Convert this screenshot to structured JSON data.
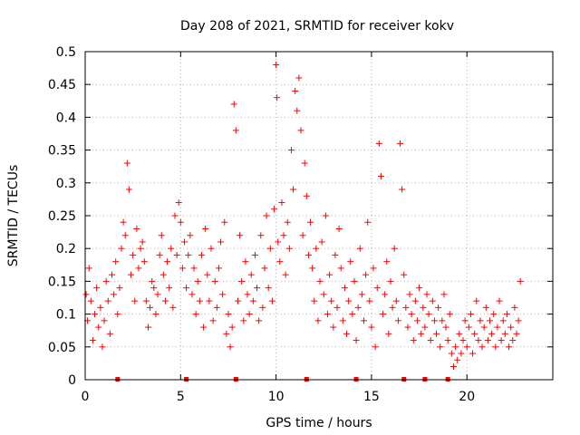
{
  "chart_data": {
    "type": "scatter",
    "title": "Day 208 of 2021, SRMTID for receiver kokv",
    "xlabel": "GPS time / hours",
    "ylabel": "SRMTID / TECUs",
    "xlim": [
      0,
      24.5
    ],
    "ylim": [
      0,
      0.5
    ],
    "x_ticks": [
      0,
      5,
      10,
      15,
      20
    ],
    "x_tick_labels": [
      "0",
      "5",
      "10",
      "15",
      "20"
    ],
    "y_ticks": [
      0,
      0.05,
      0.1,
      0.15,
      0.2,
      0.25,
      0.3,
      0.35,
      0.4,
      0.45,
      0.5
    ],
    "y_tick_labels": [
      "0",
      "0.05",
      "0.1",
      "0.15",
      "0.2",
      "0.25",
      "0.3",
      "0.35",
      "0.4",
      "0.45",
      "0.5"
    ],
    "grid": true,
    "marker": "plus",
    "color": "#ff0000",
    "series": [
      {
        "name": "SRMTID",
        "x": [
          0.05,
          0.12,
          0.2,
          0.3,
          0.4,
          0.5,
          0.6,
          0.7,
          0.8,
          0.9,
          1.0,
          1.1,
          1.2,
          1.3,
          1.4,
          1.5,
          1.6,
          1.7,
          1.8,
          1.9,
          2.0,
          2.1,
          2.2,
          2.3,
          2.4,
          2.5,
          2.6,
          2.7,
          2.8,
          2.9,
          3.0,
          3.1,
          3.2,
          3.3,
          3.4,
          3.5,
          3.6,
          3.7,
          3.8,
          3.9,
          4.0,
          4.1,
          4.2,
          4.3,
          4.4,
          4.5,
          4.6,
          4.7,
          4.8,
          4.9,
          5.0,
          5.1,
          5.2,
          5.3,
          5.4,
          5.5,
          5.6,
          5.7,
          5.8,
          5.9,
          6.0,
          6.1,
          6.2,
          6.3,
          6.4,
          6.5,
          6.6,
          6.7,
          6.8,
          6.9,
          7.0,
          7.1,
          7.2,
          7.3,
          7.4,
          7.5,
          7.6,
          7.7,
          7.8,
          7.9,
          8.0,
          8.1,
          8.2,
          8.3,
          8.4,
          8.5,
          8.6,
          8.7,
          8.8,
          8.9,
          9.0,
          9.1,
          9.2,
          9.3,
          9.4,
          9.5,
          9.6,
          9.7,
          9.8,
          9.9,
          10.0,
          10.05,
          10.1,
          10.2,
          10.3,
          10.4,
          10.5,
          10.6,
          10.7,
          10.8,
          10.9,
          11.0,
          11.1,
          11.2,
          11.3,
          11.4,
          11.5,
          11.6,
          11.7,
          11.8,
          11.9,
          12.0,
          12.1,
          12.2,
          12.3,
          12.4,
          12.5,
          12.6,
          12.7,
          12.8,
          12.9,
          13.0,
          13.1,
          13.2,
          13.3,
          13.4,
          13.5,
          13.6,
          13.7,
          13.8,
          13.9,
          14.0,
          14.1,
          14.2,
          14.3,
          14.4,
          14.5,
          14.6,
          14.7,
          14.8,
          14.9,
          15.0,
          15.1,
          15.2,
          15.3,
          15.4,
          15.5,
          15.6,
          15.7,
          15.8,
          15.9,
          16.0,
          16.1,
          16.2,
          16.3,
          16.4,
          16.5,
          16.6,
          16.7,
          16.8,
          16.9,
          17.0,
          17.1,
          17.2,
          17.3,
          17.4,
          17.5,
          17.6,
          17.7,
          17.8,
          17.9,
          18.0,
          18.1,
          18.2,
          18.3,
          18.4,
          18.5,
          18.6,
          18.7,
          18.8,
          18.9,
          19.0,
          19.1,
          19.2,
          19.3,
          19.4,
          19.5,
          19.6,
          19.7,
          19.8,
          19.9,
          20.0,
          20.1,
          20.2,
          20.3,
          20.4,
          20.5,
          20.6,
          20.7,
          20.8,
          20.9,
          21.0,
          21.1,
          21.2,
          21.3,
          21.4,
          21.5,
          21.6,
          21.7,
          21.8,
          21.9,
          22.0,
          22.1,
          22.2,
          22.3,
          22.4,
          22.5,
          22.6,
          22.7,
          22.8
        ],
        "y": [
          0.13,
          0.09,
          0.17,
          0.12,
          0.06,
          0.1,
          0.14,
          0.08,
          0.11,
          0.05,
          0.09,
          0.15,
          0.12,
          0.07,
          0.16,
          0.13,
          0.18,
          0.1,
          0.14,
          0.2,
          0.24,
          0.22,
          0.33,
          0.29,
          0.16,
          0.19,
          0.12,
          0.23,
          0.17,
          0.2,
          0.21,
          0.18,
          0.12,
          0.08,
          0.11,
          0.15,
          0.14,
          0.1,
          0.13,
          0.19,
          0.22,
          0.16,
          0.12,
          0.18,
          0.14,
          0.2,
          0.11,
          0.25,
          0.19,
          0.27,
          0.24,
          0.17,
          0.21,
          0.14,
          0.19,
          0.22,
          0.13,
          0.17,
          0.1,
          0.15,
          0.12,
          0.19,
          0.08,
          0.23,
          0.16,
          0.12,
          0.2,
          0.09,
          0.15,
          0.11,
          0.17,
          0.21,
          0.13,
          0.24,
          0.07,
          0.1,
          0.05,
          0.08,
          0.42,
          0.38,
          0.12,
          0.22,
          0.15,
          0.09,
          0.18,
          0.13,
          0.1,
          0.16,
          0.12,
          0.19,
          0.14,
          0.09,
          0.22,
          0.11,
          0.17,
          0.25,
          0.14,
          0.2,
          0.12,
          0.26,
          0.48,
          0.43,
          0.21,
          0.18,
          0.27,
          0.22,
          0.16,
          0.24,
          0.2,
          0.35,
          0.29,
          0.44,
          0.41,
          0.46,
          0.38,
          0.22,
          0.33,
          0.28,
          0.19,
          0.24,
          0.17,
          0.12,
          0.2,
          0.09,
          0.15,
          0.21,
          0.13,
          0.25,
          0.1,
          0.16,
          0.12,
          0.08,
          0.19,
          0.11,
          0.23,
          0.17,
          0.09,
          0.14,
          0.07,
          0.12,
          0.18,
          0.1,
          0.15,
          0.06,
          0.11,
          0.2,
          0.13,
          0.09,
          0.16,
          0.24,
          0.12,
          0.08,
          0.17,
          0.05,
          0.14,
          0.36,
          0.31,
          0.1,
          0.13,
          0.18,
          0.07,
          0.15,
          0.11,
          0.2,
          0.12,
          0.09,
          0.36,
          0.29,
          0.16,
          0.11,
          0.08,
          0.13,
          0.1,
          0.06,
          0.12,
          0.09,
          0.14,
          0.07,
          0.11,
          0.08,
          0.13,
          0.1,
          0.06,
          0.12,
          0.09,
          0.07,
          0.11,
          0.05,
          0.09,
          0.13,
          0.08,
          0.06,
          0.1,
          0.04,
          0.02,
          0.05,
          0.03,
          0.07,
          0.04,
          0.06,
          0.09,
          0.05,
          0.08,
          0.1,
          0.04,
          0.07,
          0.12,
          0.06,
          0.09,
          0.05,
          0.08,
          0.11,
          0.06,
          0.09,
          0.07,
          0.1,
          0.05,
          0.08,
          0.12,
          0.06,
          0.09,
          0.07,
          0.1,
          0.05,
          0.08,
          0.06,
          0.11,
          0.07,
          0.09,
          0.15
        ]
      }
    ],
    "bottom_markers_x": [
      1.7,
      5.3,
      7.9,
      11.6,
      14.2,
      16.7,
      17.8,
      19.0
    ]
  }
}
